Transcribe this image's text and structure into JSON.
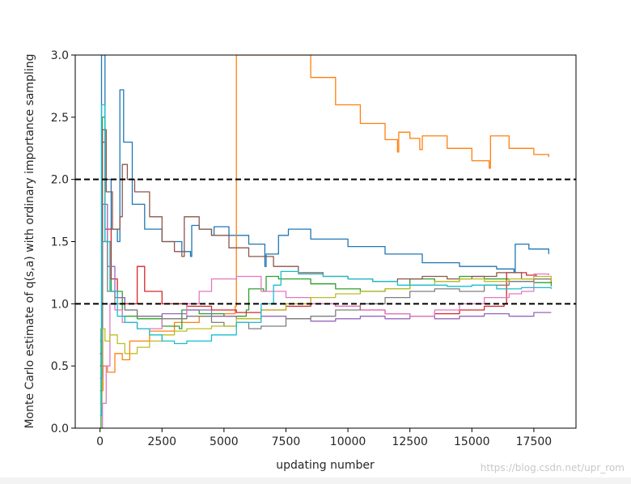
{
  "chart_data": {
    "type": "line",
    "xlabel": "updating number",
    "ylabel": "Monte Carlo estimate of q(s,a) with ordinary importance sampling",
    "xlim": [
      -1000,
      19200
    ],
    "ylim": [
      0,
      3.0
    ],
    "xticks": [
      0,
      2500,
      5000,
      7500,
      10000,
      12500,
      15000,
      17500
    ],
    "yticks": [
      0.0,
      0.5,
      1.0,
      1.5,
      2.0,
      2.5,
      3.0
    ],
    "xtick_labels": [
      "0",
      "2500",
      "5000",
      "7500",
      "10000",
      "12500",
      "15000",
      "17500"
    ],
    "ytick_labels": [
      "0.0",
      "0.5",
      "1.0",
      "1.5",
      "2.0",
      "2.5",
      "3.0"
    ],
    "reference_lines": [
      {
        "y": 2.0,
        "style": "dashed",
        "color": "#000000"
      },
      {
        "y": 1.0,
        "style": "dashed",
        "color": "#000000"
      }
    ],
    "grid": false,
    "legend": "none",
    "series": [
      {
        "color": "#1f77b4",
        "points": [
          [
            0,
            0.2
          ],
          [
            60,
            3.0
          ],
          [
            200,
            2.0
          ],
          [
            450,
            1.6
          ],
          [
            700,
            1.5
          ],
          [
            800,
            2.72
          ],
          [
            950,
            2.3
          ],
          [
            1300,
            1.8
          ],
          [
            1800,
            1.6
          ],
          [
            2500,
            1.5
          ],
          [
            3300,
            1.42
          ],
          [
            3650,
            1.38
          ],
          [
            3700,
            1.63
          ],
          [
            4000,
            1.6
          ],
          [
            4500,
            1.55
          ],
          [
            4600,
            1.62
          ],
          [
            5200,
            1.55
          ],
          [
            6000,
            1.48
          ],
          [
            6650,
            1.3
          ],
          [
            6700,
            1.4
          ],
          [
            7200,
            1.55
          ],
          [
            7600,
            1.6
          ],
          [
            8500,
            1.52
          ],
          [
            10000,
            1.46
          ],
          [
            11500,
            1.4
          ],
          [
            13000,
            1.33
          ],
          [
            14500,
            1.3
          ],
          [
            16000,
            1.28
          ],
          [
            16700,
            1.25
          ],
          [
            16750,
            1.48
          ],
          [
            17300,
            1.44
          ],
          [
            18100,
            1.4
          ]
        ]
      },
      {
        "color": "#ff7f0e",
        "points": [
          [
            0,
            0.3
          ],
          [
            120,
            0.5
          ],
          [
            300,
            0.45
          ],
          [
            600,
            0.6
          ],
          [
            900,
            0.55
          ],
          [
            1200,
            0.7
          ],
          [
            2000,
            0.78
          ],
          [
            3000,
            0.85
          ],
          [
            4000,
            0.9
          ],
          [
            5000,
            0.92
          ],
          [
            5450,
            0.98
          ],
          [
            5500,
            3.0
          ],
          [
            7600,
            3.0
          ],
          [
            8500,
            2.82
          ],
          [
            9500,
            2.6
          ],
          [
            10500,
            2.45
          ],
          [
            11500,
            2.32
          ],
          [
            12000,
            2.22
          ],
          [
            12050,
            2.38
          ],
          [
            12500,
            2.33
          ],
          [
            12900,
            2.24
          ],
          [
            13000,
            2.35
          ],
          [
            14000,
            2.25
          ],
          [
            15000,
            2.15
          ],
          [
            15700,
            2.09
          ],
          [
            15750,
            2.35
          ],
          [
            16500,
            2.25
          ],
          [
            17500,
            2.2
          ],
          [
            18100,
            2.18
          ]
        ]
      },
      {
        "color": "#2ca02c",
        "points": [
          [
            0,
            0.0
          ],
          [
            40,
            0.8
          ],
          [
            90,
            2.5
          ],
          [
            200,
            1.5
          ],
          [
            450,
            1.1
          ],
          [
            900,
            0.9
          ],
          [
            1500,
            0.88
          ],
          [
            2500,
            0.82
          ],
          [
            3200,
            0.8
          ],
          [
            3300,
            0.95
          ],
          [
            4000,
            0.92
          ],
          [
            5000,
            0.9
          ],
          [
            5900,
            0.95
          ],
          [
            6000,
            1.12
          ],
          [
            6600,
            1.1
          ],
          [
            6700,
            1.22
          ],
          [
            7200,
            1.2
          ],
          [
            8500,
            1.16
          ],
          [
            9500,
            1.12
          ],
          [
            10500,
            1.1
          ],
          [
            11500,
            1.12
          ],
          [
            12500,
            1.2
          ],
          [
            13500,
            1.18
          ],
          [
            14500,
            1.22
          ],
          [
            15500,
            1.2
          ],
          [
            16500,
            1.18
          ],
          [
            17500,
            1.17
          ],
          [
            18200,
            1.14
          ]
        ]
      },
      {
        "color": "#d62728",
        "points": [
          [
            0,
            0.6
          ],
          [
            80,
            2.3
          ],
          [
            200,
            1.6
          ],
          [
            450,
            1.2
          ],
          [
            700,
            1.05
          ],
          [
            1000,
            1.0
          ],
          [
            1500,
            1.3
          ],
          [
            1800,
            1.1
          ],
          [
            2500,
            1.0
          ],
          [
            3500,
            0.98
          ],
          [
            4500,
            0.95
          ],
          [
            5500,
            0.93
          ],
          [
            6500,
            0.95
          ],
          [
            7500,
            0.98
          ],
          [
            8500,
            1.0
          ],
          [
            9500,
            0.98
          ],
          [
            10500,
            0.95
          ],
          [
            11500,
            0.92
          ],
          [
            12500,
            0.9
          ],
          [
            13500,
            0.92
          ],
          [
            14500,
            0.95
          ],
          [
            15500,
            0.98
          ],
          [
            16300,
            1.0
          ],
          [
            16400,
            1.25
          ],
          [
            17200,
            1.23
          ],
          [
            17600,
            1.22
          ]
        ]
      },
      {
        "color": "#9467bd",
        "points": [
          [
            0,
            0.4
          ],
          [
            100,
            1.8
          ],
          [
            300,
            1.3
          ],
          [
            600,
            1.05
          ],
          [
            1000,
            0.95
          ],
          [
            1500,
            0.9
          ],
          [
            2500,
            0.92
          ],
          [
            3500,
            0.95
          ],
          [
            4500,
            0.9
          ],
          [
            5500,
            0.88
          ],
          [
            6500,
            0.9
          ],
          [
            7500,
            0.88
          ],
          [
            8500,
            0.86
          ],
          [
            9500,
            0.88
          ],
          [
            10500,
            0.9
          ],
          [
            11500,
            0.88
          ],
          [
            12500,
            0.9
          ],
          [
            13500,
            0.88
          ],
          [
            14500,
            0.9
          ],
          [
            15500,
            0.92
          ],
          [
            16500,
            0.9
          ],
          [
            17500,
            0.93
          ],
          [
            18200,
            0.93
          ]
        ]
      },
      {
        "color": "#8c564b",
        "points": [
          [
            0,
            0.5
          ],
          [
            100,
            2.4
          ],
          [
            250,
            1.9
          ],
          [
            500,
            1.6
          ],
          [
            800,
            1.7
          ],
          [
            900,
            2.12
          ],
          [
            1100,
            2.0
          ],
          [
            1400,
            1.9
          ],
          [
            2000,
            1.7
          ],
          [
            2500,
            1.5
          ],
          [
            3000,
            1.42
          ],
          [
            3300,
            1.38
          ],
          [
            3400,
            1.7
          ],
          [
            4000,
            1.6
          ],
          [
            4500,
            1.55
          ],
          [
            5200,
            1.45
          ],
          [
            6000,
            1.38
          ],
          [
            7000,
            1.3
          ],
          [
            8000,
            1.25
          ],
          [
            9000,
            1.22
          ],
          [
            10000,
            1.2
          ],
          [
            11000,
            1.18
          ],
          [
            12000,
            1.2
          ],
          [
            13000,
            1.22
          ],
          [
            14000,
            1.2
          ],
          [
            15000,
            1.22
          ],
          [
            16000,
            1.25
          ],
          [
            17000,
            1.2
          ],
          [
            18200,
            1.17
          ]
        ]
      },
      {
        "color": "#e377c2",
        "points": [
          [
            0,
            0.0
          ],
          [
            100,
            0.2
          ],
          [
            250,
            0.5
          ],
          [
            400,
            1.0
          ],
          [
            600,
            0.95
          ],
          [
            900,
            0.85
          ],
          [
            1500,
            0.8
          ],
          [
            2500,
            0.88
          ],
          [
            3500,
            1.0
          ],
          [
            4000,
            1.1
          ],
          [
            4500,
            1.2
          ],
          [
            5500,
            1.22
          ],
          [
            6500,
            1.1
          ],
          [
            7500,
            1.05
          ],
          [
            8500,
            1.0
          ],
          [
            9500,
            0.98
          ],
          [
            10500,
            0.95
          ],
          [
            11500,
            0.92
          ],
          [
            12500,
            0.9
          ],
          [
            13500,
            0.95
          ],
          [
            14500,
            1.0
          ],
          [
            15500,
            1.05
          ],
          [
            16500,
            1.08
          ],
          [
            17000,
            1.1
          ],
          [
            17500,
            1.24
          ],
          [
            18100,
            1.23
          ]
        ]
      },
      {
        "color": "#7f7f7f",
        "points": [
          [
            0,
            0.7
          ],
          [
            100,
            1.5
          ],
          [
            300,
            1.1
          ],
          [
            600,
            1.0
          ],
          [
            1000,
            0.95
          ],
          [
            1500,
            0.9
          ],
          [
            2500,
            0.88
          ],
          [
            3500,
            0.9
          ],
          [
            4500,
            0.85
          ],
          [
            5000,
            0.82
          ],
          [
            5500,
            0.85
          ],
          [
            6000,
            0.8
          ],
          [
            6500,
            0.82
          ],
          [
            7500,
            0.88
          ],
          [
            8500,
            0.9
          ],
          [
            9500,
            0.95
          ],
          [
            10500,
            1.0
          ],
          [
            11500,
            1.05
          ],
          [
            12500,
            1.1
          ],
          [
            13500,
            1.12
          ],
          [
            14500,
            1.1
          ],
          [
            15500,
            1.15
          ],
          [
            16500,
            1.18
          ],
          [
            17500,
            1.2
          ],
          [
            18200,
            1.18
          ]
        ]
      },
      {
        "color": "#bcbd22",
        "points": [
          [
            0,
            0.2
          ],
          [
            80,
            0.8
          ],
          [
            200,
            0.7
          ],
          [
            400,
            0.75
          ],
          [
            700,
            0.68
          ],
          [
            1000,
            0.6
          ],
          [
            1500,
            0.65
          ],
          [
            2000,
            0.7
          ],
          [
            2500,
            0.75
          ],
          [
            3000,
            0.78
          ],
          [
            3500,
            0.8
          ],
          [
            4500,
            0.82
          ],
          [
            5500,
            0.88
          ],
          [
            6500,
            0.95
          ],
          [
            7500,
            1.0
          ],
          [
            8500,
            1.05
          ],
          [
            9500,
            1.08
          ],
          [
            10500,
            1.1
          ],
          [
            11500,
            1.12
          ],
          [
            12500,
            1.15
          ],
          [
            13500,
            1.18
          ],
          [
            14500,
            1.2
          ],
          [
            15500,
            1.18
          ],
          [
            16500,
            1.2
          ],
          [
            17500,
            1.22
          ],
          [
            18200,
            1.18
          ]
        ]
      },
      {
        "color": "#17becf",
        "points": [
          [
            0,
            0.1
          ],
          [
            60,
            2.6
          ],
          [
            200,
            1.5
          ],
          [
            400,
            1.1
          ],
          [
            700,
            0.9
          ],
          [
            1000,
            0.85
          ],
          [
            1500,
            0.8
          ],
          [
            2000,
            0.75
          ],
          [
            2500,
            0.7
          ],
          [
            3000,
            0.68
          ],
          [
            3500,
            0.7
          ],
          [
            4500,
            0.75
          ],
          [
            5500,
            0.85
          ],
          [
            6500,
            1.0
          ],
          [
            7000,
            1.15
          ],
          [
            7300,
            1.26
          ],
          [
            8000,
            1.24
          ],
          [
            9000,
            1.22
          ],
          [
            10000,
            1.2
          ],
          [
            11000,
            1.18
          ],
          [
            12000,
            1.15
          ],
          [
            13000,
            1.15
          ],
          [
            14000,
            1.14
          ],
          [
            15000,
            1.15
          ],
          [
            16000,
            1.12
          ],
          [
            17000,
            1.13
          ],
          [
            18200,
            1.12
          ]
        ]
      }
    ]
  },
  "watermark": {
    "text": "https://blog.csdn.net/upr_rom"
  }
}
